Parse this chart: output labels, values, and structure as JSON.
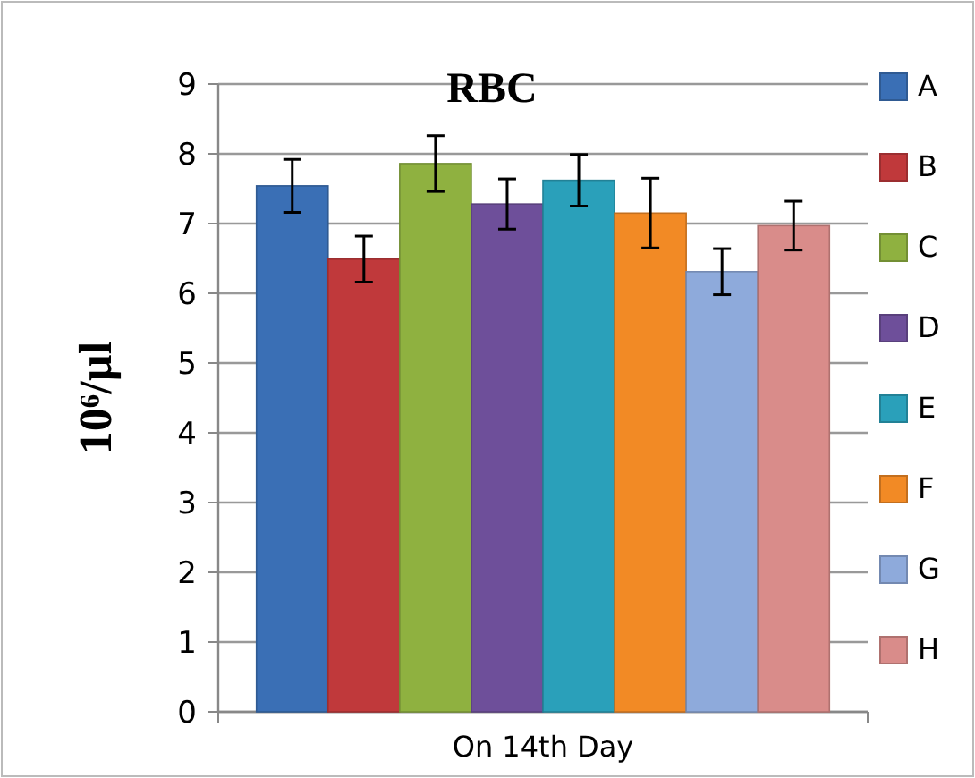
{
  "chart_data": {
    "type": "bar",
    "title": "RBC",
    "ylabel": "10⁶/µl",
    "categories": [
      "On 14th Day"
    ],
    "series": [
      {
        "name": "A",
        "color": "#3a6fb5",
        "values": [
          7.54
        ],
        "errors": [
          0.38
        ]
      },
      {
        "name": "B",
        "color": "#c0393b",
        "values": [
          6.49
        ],
        "errors": [
          0.33
        ]
      },
      {
        "name": "C",
        "color": "#8fb140",
        "values": [
          7.86
        ],
        "errors": [
          0.4
        ]
      },
      {
        "name": "D",
        "color": "#6e4f9a",
        "values": [
          7.28
        ],
        "errors": [
          0.36
        ]
      },
      {
        "name": "E",
        "color": "#2aa0ba",
        "values": [
          7.62
        ],
        "errors": [
          0.37
        ]
      },
      {
        "name": "F",
        "color": "#f28a25",
        "values": [
          7.15
        ],
        "errors": [
          0.5
        ]
      },
      {
        "name": "G",
        "color": "#8eaadb",
        "values": [
          6.31
        ],
        "errors": [
          0.33
        ]
      },
      {
        "name": "H",
        "color": "#d98c8a",
        "values": [
          6.97
        ],
        "errors": [
          0.35
        ]
      }
    ],
    "ylim": [
      0,
      9
    ],
    "yticks": [
      0,
      1,
      2,
      3,
      4,
      5,
      6,
      7,
      8,
      9
    ],
    "grid": "y",
    "legend": "right"
  }
}
